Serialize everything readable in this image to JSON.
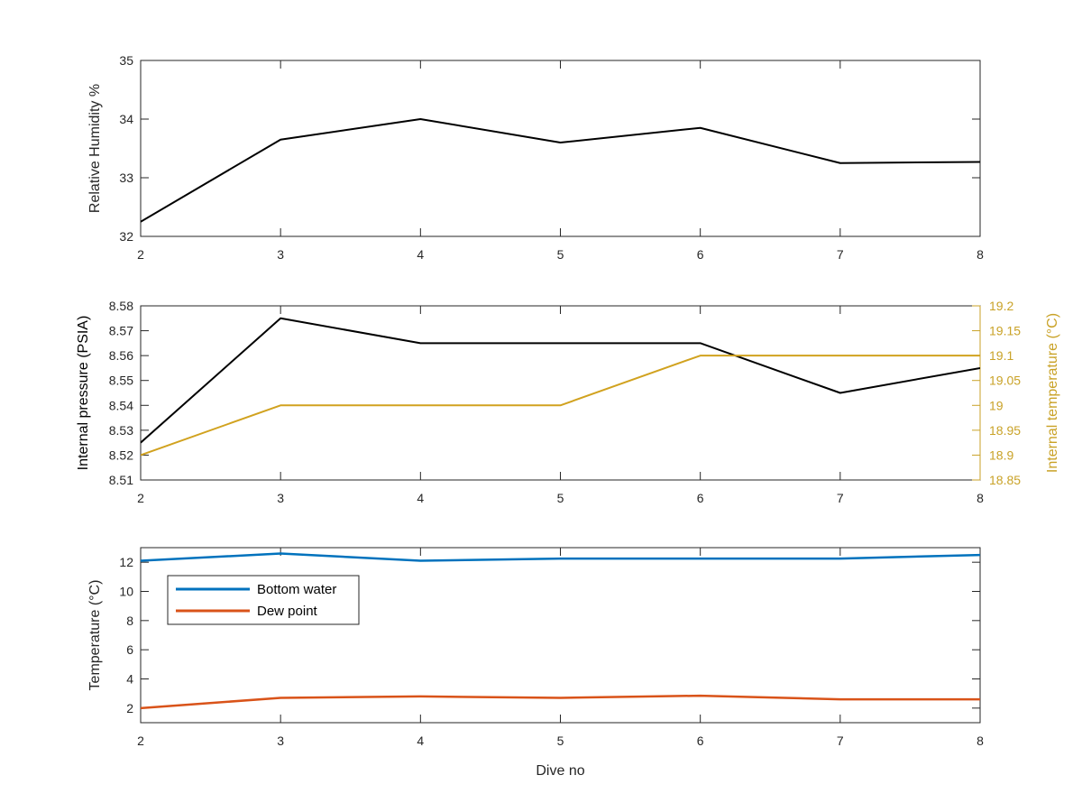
{
  "chart_data": [
    {
      "type": "line",
      "x": [
        2,
        3,
        4,
        5,
        6,
        7,
        8
      ],
      "xlim": [
        2,
        8
      ],
      "xticks": [
        2,
        3,
        4,
        5,
        6,
        7,
        8
      ],
      "xlabel": "",
      "ylabel": "Relative Humidity %",
      "ylim": [
        32,
        35
      ],
      "yticks": [
        32,
        33,
        34,
        35
      ],
      "series": [
        {
          "values": [
            32.25,
            33.65,
            34.0,
            33.6,
            33.85,
            33.25,
            33.27
          ],
          "color": "#000000"
        }
      ],
      "grid": false
    },
    {
      "type": "line",
      "x": [
        2,
        3,
        4,
        5,
        6,
        7,
        8
      ],
      "xlim": [
        2,
        8
      ],
      "xticks": [
        2,
        3,
        4,
        5,
        6,
        7,
        8
      ],
      "xlabel": "",
      "ylabel": "Internal pressure (PSIA)",
      "ylim": [
        8.51,
        8.58
      ],
      "yticks": [
        8.51,
        8.52,
        8.53,
        8.54,
        8.55,
        8.56,
        8.57,
        8.58
      ],
      "ytick_labels": [
        "8.51",
        "8.52",
        "8.53",
        "8.54",
        "8.55",
        "8.56",
        "8.57",
        "8.58"
      ],
      "ylabel_right": "Internal temperature (°C)",
      "ylim_right": [
        18.85,
        19.2
      ],
      "yticks_right": [
        18.85,
        18.9,
        18.95,
        19.0,
        19.05,
        19.1,
        19.15,
        19.2
      ],
      "ytick_labels_right": [
        "18.85",
        "18.9",
        "18.95",
        "19",
        "19.05",
        "19.1",
        "19.15",
        "19.2"
      ],
      "series": [
        {
          "values": [
            8.525,
            8.575,
            8.565,
            8.565,
            8.565,
            8.545,
            8.555
          ],
          "color": "#000000",
          "axis": "left"
        },
        {
          "values": [
            18.9,
            19.0,
            19.0,
            19.0,
            19.1,
            19.1,
            19.1
          ],
          "color": "#D1A21F",
          "axis": "right"
        }
      ],
      "right_axis_color": "#C9A227",
      "grid": false
    },
    {
      "type": "line",
      "x": [
        2,
        3,
        4,
        5,
        6,
        7,
        8
      ],
      "xlim": [
        2,
        8
      ],
      "xticks": [
        2,
        3,
        4,
        5,
        6,
        7,
        8
      ],
      "xlabel": "Dive no",
      "ylabel": "Temperature (°C)",
      "ylim": [
        1,
        13
      ],
      "yticks": [
        2,
        4,
        6,
        8,
        10,
        12
      ],
      "series": [
        {
          "name": "Bottom water",
          "values": [
            12.1,
            12.6,
            12.1,
            12.25,
            12.25,
            12.25,
            12.5
          ],
          "color": "#0072BD"
        },
        {
          "name": "Dew point",
          "values": [
            2.0,
            2.7,
            2.8,
            2.7,
            2.85,
            2.6,
            2.6
          ],
          "color": "#D95319"
        }
      ],
      "legend": "top-left",
      "grid": false
    }
  ]
}
